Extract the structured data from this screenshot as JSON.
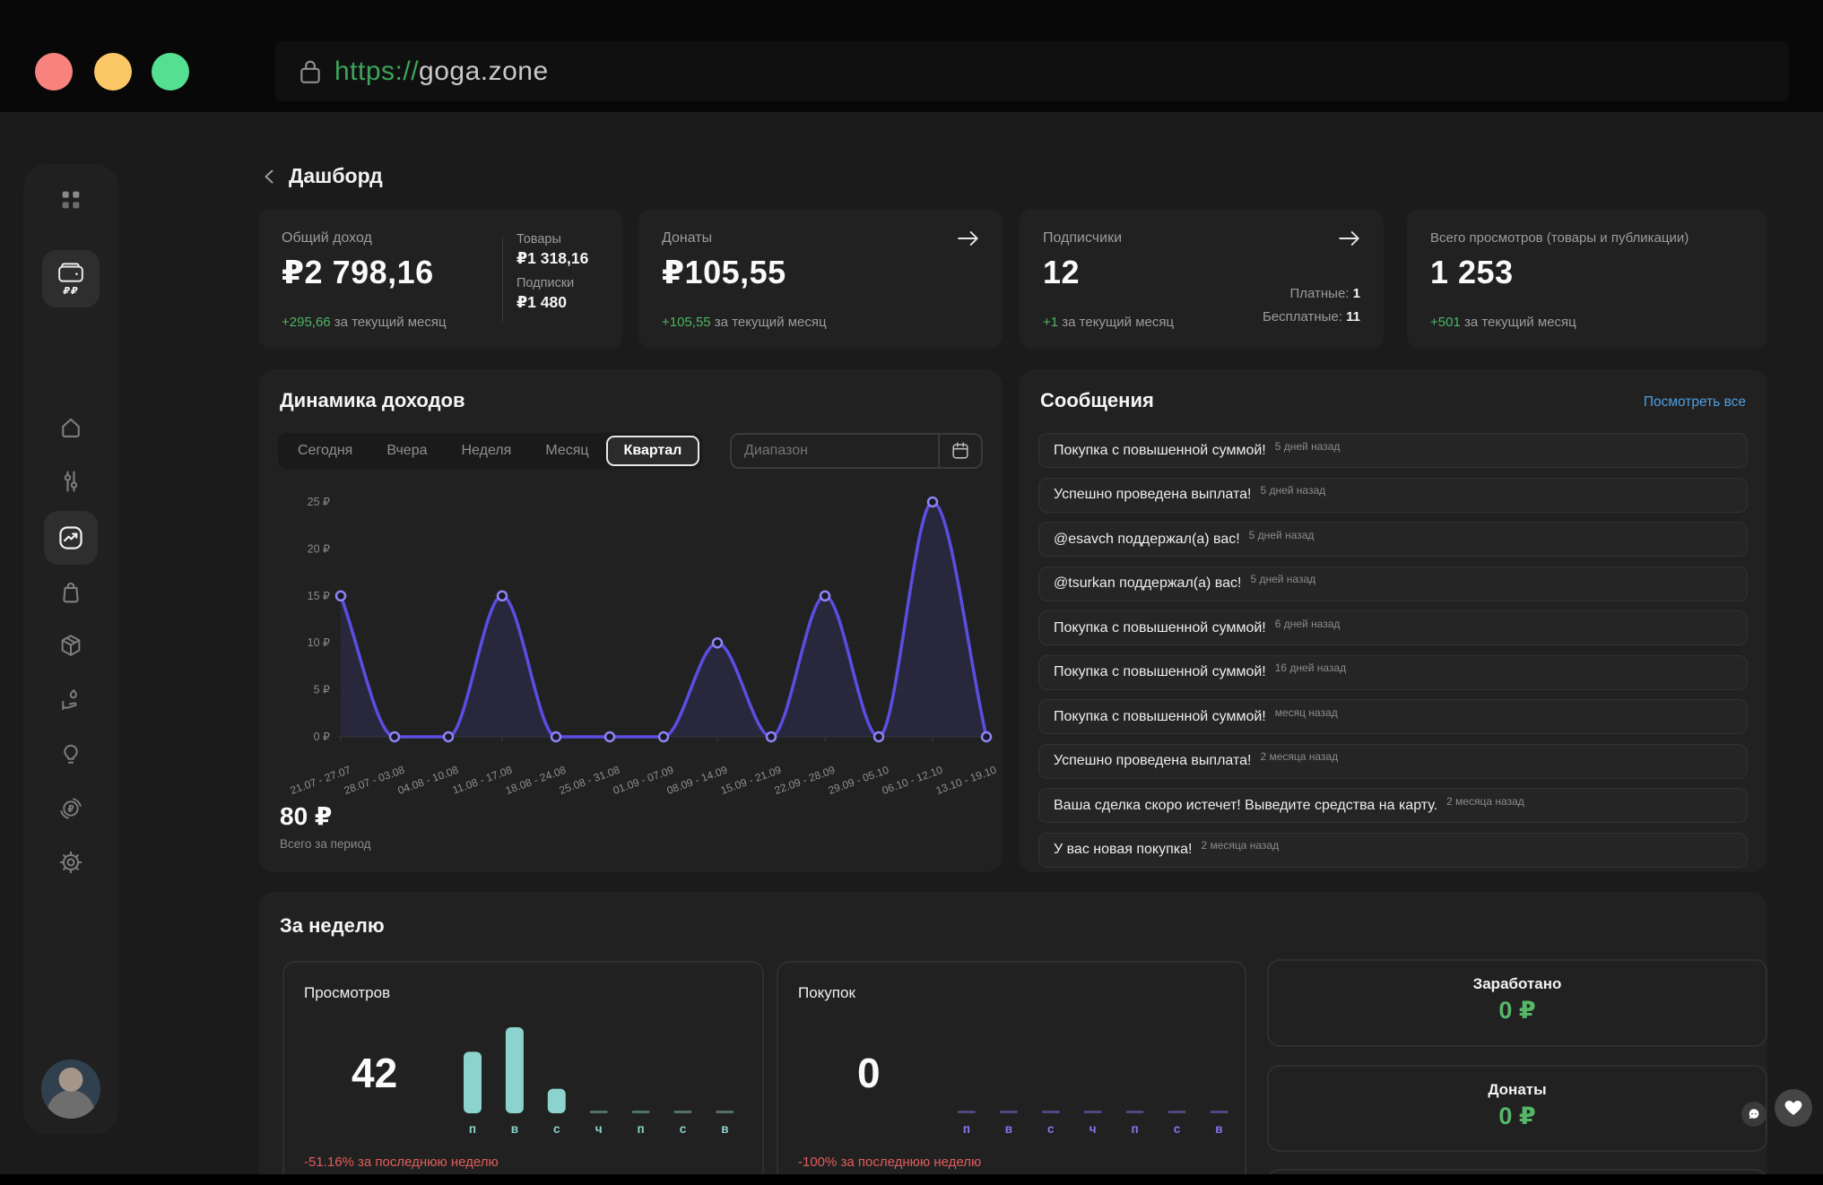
{
  "browser": {
    "url_protocol": "https://",
    "url_host": "goga.zone"
  },
  "header": {
    "title": "Дашборд"
  },
  "sidebar": {
    "wallet_badge": "₽₽",
    "items": [
      "apps-grid",
      "wallet",
      "home",
      "filters",
      "analytics",
      "shop",
      "products",
      "donations",
      "ideas",
      "subscriptions",
      "settings"
    ]
  },
  "stat_cards": [
    {
      "label": "Общий доход",
      "value": "₽2 798,16",
      "delta": "+295,66",
      "delta_suffix": " за текущий месяц",
      "side": [
        {
          "label": "Товары",
          "value": "₽1 318,16"
        },
        {
          "label": "Подписки",
          "value": "₽1 480"
        }
      ]
    },
    {
      "label": "Донаты",
      "value": "₽105,55",
      "delta": "+105,55",
      "delta_suffix": " за текущий месяц"
    },
    {
      "label": "Подписчики",
      "value": "12",
      "delta": "+1",
      "delta_suffix": " за текущий месяц",
      "side": [
        {
          "label": "Платные:",
          "value": "1"
        },
        {
          "label": "Бесплатные:",
          "value": "11"
        }
      ]
    },
    {
      "label": "Всего просмотров (товары и публикации)",
      "value": "1 253",
      "delta": "+501",
      "delta_suffix": " за текущий месяц"
    }
  ],
  "income_panel": {
    "title": "Динамика доходов",
    "tabs": [
      "Сегодня",
      "Вчера",
      "Неделя",
      "Месяц",
      "Квартал"
    ],
    "active_tab": "Квартал",
    "range_placeholder": "Диапазон"
  },
  "messages_panel": {
    "title": "Сообщения",
    "view_all": "Посмотреть все",
    "items": [
      {
        "title": "Покупка с повышенной суммой!",
        "time": "5 дней назад"
      },
      {
        "title": "Успешно проведена выплата!",
        "time": "5 дней назад"
      },
      {
        "title": "@esavch поддержал(а) вас!",
        "time": "5 дней назад"
      },
      {
        "title": "@tsurkan поддержал(а) вас!",
        "time": "5 дней назад"
      },
      {
        "title": "Покупка с повышенной суммой!",
        "time": "6 дней назад"
      },
      {
        "title": "Покупка с повышенной суммой!",
        "time": "16 дней назад"
      },
      {
        "title": "Покупка с повышенной суммой!",
        "time": "месяц назад"
      },
      {
        "title": "Успешно проведена выплата!",
        "time": "2 месяца назад"
      },
      {
        "title": "Ваша сделка скоро истечет! Выведите средства на карту.",
        "time": "2 месяца назад"
      },
      {
        "title": "У вас новая покупка!",
        "time": "2 месяца назад"
      },
      {
        "title": "",
        "time": ""
      }
    ]
  },
  "week_panel": {
    "title": "За неделю",
    "earned": {
      "label": "Заработано",
      "value": "0 ₽"
    },
    "donates": {
      "label": "Донаты",
      "value": "0 ₽"
    }
  },
  "chart_data": [
    {
      "id": "income_dynamics",
      "type": "line",
      "title": "Динамика доходов",
      "x": [
        "21.07 - 27.07",
        "28.07 - 03.08",
        "04.08 - 10.08",
        "11.08 - 17.08",
        "18.08 - 24.08",
        "25.08 - 31.08",
        "01.09 - 07.09",
        "08.09 - 14.09",
        "15.09 - 21.09",
        "22.09 - 28.09",
        "29.09 - 05.10",
        "06.10 - 12.10",
        "13.10 - 19.10"
      ],
      "values": [
        15,
        0,
        0,
        15,
        0,
        0,
        0,
        10,
        0,
        15,
        0,
        25,
        0
      ],
      "ylim": [
        0,
        25
      ],
      "yticks": [
        0,
        5,
        10,
        15,
        20,
        25
      ],
      "ytick_suffix": " ₽",
      "grid": true,
      "line_color": "#5b4ee2",
      "point_color": "#8d85f3",
      "fill_color": "rgba(91,78,226,0.14)",
      "total": "80 ₽",
      "total_caption": "Всего за период"
    },
    {
      "id": "week_views",
      "type": "bar",
      "title": "Просмотров",
      "categories": [
        "п",
        "в",
        "с",
        "ч",
        "п",
        "с",
        "в"
      ],
      "values": [
        15,
        21,
        6,
        0,
        0,
        0,
        0
      ],
      "total": "42",
      "delta": "-51.16% за последнюю неделю",
      "bar_color": "#8bd3cc"
    },
    {
      "id": "week_purchases",
      "type": "bar",
      "title": "Покупок",
      "categories": [
        "п",
        "в",
        "с",
        "ч",
        "п",
        "с",
        "в"
      ],
      "values": [
        0,
        0,
        0,
        0,
        0,
        0,
        0
      ],
      "total": "0",
      "delta": "-100% за последнюю неделю",
      "bar_color": "#8377f2"
    }
  ],
  "colors": {
    "accent_green": "#4db564",
    "accent_red": "#e25c5c",
    "line_violet": "#5b4ee2",
    "teal": "#8bd3cc",
    "purple": "#8377f2",
    "link_blue": "#4f9fe0",
    "traffic_red": "#f8827e",
    "traffic_yellow": "#fbc767",
    "traffic_green": "#55df90"
  }
}
